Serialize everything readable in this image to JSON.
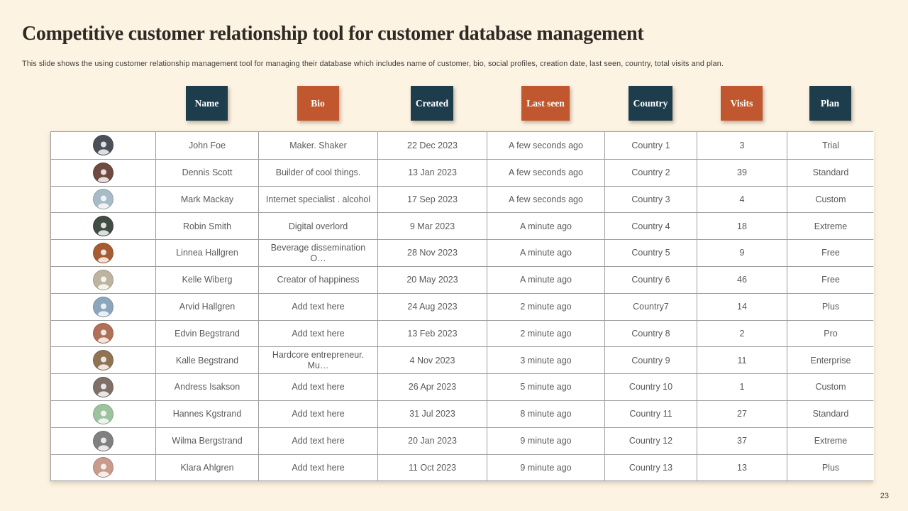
{
  "slide": {
    "title": "Competitive customer relationship tool for customer database management",
    "subtitle": "This slide shows the using customer relationship management tool for managing their database which includes name of customer, bio, social profiles, creation date, last seen, country, total visits and plan.",
    "page_number": "23"
  },
  "colors": {
    "navy": "#1d3c4c",
    "orange": "#c0572e",
    "background": "#fdf3e3",
    "cell_text": "#595959",
    "grid_line": "#9e9e9e"
  },
  "table": {
    "columns": [
      {
        "label": "Name",
        "bg": "#1d3c4c"
      },
      {
        "label": "Bio",
        "bg": "#c0572e"
      },
      {
        "label": "Created",
        "bg": "#1d3c4c"
      },
      {
        "label": "Last seen",
        "bg": "#c0572e"
      },
      {
        "label": "Country",
        "bg": "#1d3c4c"
      },
      {
        "label": "Visits",
        "bg": "#c0572e"
      },
      {
        "label": "Plan",
        "bg": "#1d3c4c"
      }
    ],
    "rows": [
      {
        "avatar": {
          "person": "man-dark-suit",
          "color": "#4a4f5a"
        },
        "name": "John Foe",
        "bio": "Maker. Shaker",
        "created": "22 Dec 2023",
        "last_seen": "A few seconds ago",
        "country": "Country 1",
        "visits": "3",
        "plan": "Trial"
      },
      {
        "avatar": {
          "person": "woman-dark-hair",
          "color": "#6e4a40"
        },
        "name": "Dennis Scott",
        "bio": "Builder of cool things.",
        "created": "13 Jan 2023",
        "last_seen": "A few seconds ago",
        "country": "Country 2",
        "visits": "39",
        "plan": "Standard"
      },
      {
        "avatar": {
          "person": "man-blue-shirt",
          "color": "#a8bcc8"
        },
        "name": "Mark Mackay",
        "bio": "Internet specialist . alcohol",
        "created": "17 Sep 2023",
        "last_seen": "A few seconds ago",
        "country": "Country 3",
        "visits": "4",
        "plan": "Custom"
      },
      {
        "avatar": {
          "person": "man-dark-green",
          "color": "#3f4d44"
        },
        "name": "Robin Smith",
        "bio": "Digital overlord",
        "created": "9 Mar 2023",
        "last_seen": "A minute ago",
        "country": "Country 4",
        "visits": "18",
        "plan": "Extreme"
      },
      {
        "avatar": {
          "person": "woman-red-hair",
          "color": "#a65c33"
        },
        "name": "Linnea Hallgren",
        "bio": "Beverage dissemination O…",
        "created": "28 Nov 2023",
        "last_seen": "A minute ago",
        "country": "Country 5",
        "visits": "9",
        "plan": "Free"
      },
      {
        "avatar": {
          "person": "woman-light",
          "color": "#bdb49f"
        },
        "name": "Kelle Wiberg",
        "bio": "Creator of happiness",
        "created": "20 May 2023",
        "last_seen": "A minute ago",
        "country": "Country 6",
        "visits": "46",
        "plan": "Free"
      },
      {
        "avatar": {
          "person": "man-blue-shirt-2",
          "color": "#8ba6bd"
        },
        "name": "Arvid Hallgren",
        "bio": "Add text here",
        "created": "24 Aug 2023",
        "last_seen": "2 minute ago",
        "country": "Country7",
        "visits": "14",
        "plan": "Plus"
      },
      {
        "avatar": {
          "person": "woman-curly-red",
          "color": "#b07058"
        },
        "name": "Edvin Begstrand",
        "bio": "Add text here",
        "created": "13 Feb 2023",
        "last_seen": "2 minute ago",
        "country": "Country 8",
        "visits": "2",
        "plan": "Pro"
      },
      {
        "avatar": {
          "person": "woman-brown-hair",
          "color": "#8f7354"
        },
        "name": "Kalle Begstrand",
        "bio": "Hardcore entrepreneur. Mu…",
        "created": "4 Nov 2023",
        "last_seen": "3 minute ago",
        "country": "Country 9",
        "visits": "11",
        "plan": "Enterprise"
      },
      {
        "avatar": {
          "person": "woman-dark-hair-2",
          "color": "#7f7068"
        },
        "name": "Andress Isakson",
        "bio": "Add text here",
        "created": "26 Apr 2023",
        "last_seen": "5 minute ago",
        "country": "Country 10",
        "visits": "1",
        "plan": "Custom"
      },
      {
        "avatar": {
          "person": "man-green-bg",
          "color": "#9cc29e"
        },
        "name": "Hannes Kgstrand",
        "bio": "Add text here",
        "created": "31 Jul 2023",
        "last_seen": "8 minute ago",
        "country": "Country 11",
        "visits": "27",
        "plan": "Standard"
      },
      {
        "avatar": {
          "person": "man-gray-bg",
          "color": "#808080"
        },
        "name": "Wilma Bergstrand",
        "bio": "Add text here",
        "created": "20 Jan 2023",
        "last_seen": "9 minute ago",
        "country": "Country 12",
        "visits": "37",
        "plan": "Extreme"
      },
      {
        "avatar": {
          "person": "man-pink-bg",
          "color": "#c89b8c"
        },
        "name": "Klara Ahlgren",
        "bio": "Add text here",
        "created": "11 Oct 2023",
        "last_seen": "9 minute ago",
        "country": "Country 13",
        "visits": "13",
        "plan": "Plus"
      }
    ]
  }
}
